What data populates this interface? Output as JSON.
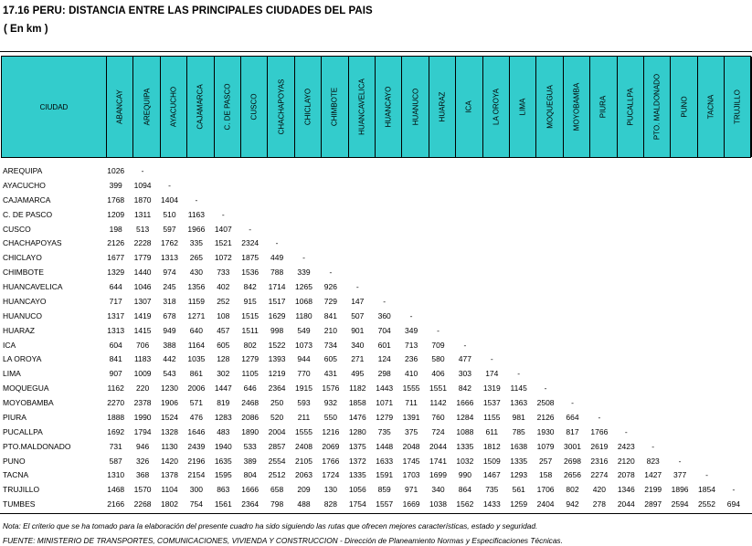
{
  "title": "17.16  PERU: DISTANCIA ENTRE LAS PRINCIPALES CIUDADES DEL PAIS",
  "subtitle": "( En km )",
  "header": {
    "city_label": "CIUDAD",
    "columns": [
      "ABANCAY",
      "AREQUIPA",
      "AYACUCHO",
      "CAJAMARCA",
      "C. DE PASCO",
      "CUSCO",
      "CHACHAPOYAS",
      "CHICLAYO",
      "CHIMBOTE",
      "HUANCAVELICA",
      "HUANCAYO",
      "HUANUCO",
      "HUARAZ",
      "ICA",
      "LA OROYA",
      "LIMA",
      "MOQUEGUA",
      "MOYOBAMBA",
      "PIURA",
      "PUCALLPA",
      "PTO. MALDONADO",
      "PUNO",
      "TACNA",
      "TRUJILLO"
    ]
  },
  "rows": [
    {
      "city": "AREQUIPA",
      "values": [
        "1026",
        "-"
      ]
    },
    {
      "city": "AYACUCHO",
      "values": [
        "399",
        "1094",
        "-"
      ]
    },
    {
      "city": "CAJAMARCA",
      "values": [
        "1768",
        "1870",
        "1404",
        "-"
      ]
    },
    {
      "city": "C. DE PASCO",
      "values": [
        "1209",
        "1311",
        "510",
        "1163",
        "-"
      ]
    },
    {
      "city": "CUSCO",
      "values": [
        "198",
        "513",
        "597",
        "1966",
        "1407",
        "-"
      ]
    },
    {
      "city": "CHACHAPOYAS",
      "values": [
        "2126",
        "2228",
        "1762",
        "335",
        "1521",
        "2324",
        "-"
      ]
    },
    {
      "city": "CHICLAYO",
      "values": [
        "1677",
        "1779",
        "1313",
        "265",
        "1072",
        "1875",
        "449",
        "-"
      ]
    },
    {
      "city": "CHIMBOTE",
      "values": [
        "1329",
        "1440",
        "974",
        "430",
        "733",
        "1536",
        "788",
        "339",
        "-"
      ]
    },
    {
      "city": "HUANCAVELICA",
      "values": [
        "644",
        "1046",
        "245",
        "1356",
        "402",
        "842",
        "1714",
        "1265",
        "926",
        "-"
      ]
    },
    {
      "city": "HUANCAYO",
      "values": [
        "717",
        "1307",
        "318",
        "1159",
        "252",
        "915",
        "1517",
        "1068",
        "729",
        "147",
        "-"
      ]
    },
    {
      "city": "HUANUCO",
      "values": [
        "1317",
        "1419",
        "678",
        "1271",
        "108",
        "1515",
        "1629",
        "1180",
        "841",
        "507",
        "360",
        "-"
      ]
    },
    {
      "city": "HUARAZ",
      "values": [
        "1313",
        "1415",
        "949",
        "640",
        "457",
        "1511",
        "998",
        "549",
        "210",
        "901",
        "704",
        "349",
        "-"
      ]
    },
    {
      "city": "ICA",
      "values": [
        "604",
        "706",
        "388",
        "1164",
        "605",
        "802",
        "1522",
        "1073",
        "734",
        "340",
        "601",
        "713",
        "709",
        "-"
      ]
    },
    {
      "city": "LA OROYA",
      "values": [
        "841",
        "1183",
        "442",
        "1035",
        "128",
        "1279",
        "1393",
        "944",
        "605",
        "271",
        "124",
        "236",
        "580",
        "477",
        "-"
      ]
    },
    {
      "city": "LIMA",
      "values": [
        "907",
        "1009",
        "543",
        "861",
        "302",
        "1105",
        "1219",
        "770",
        "431",
        "495",
        "298",
        "410",
        "406",
        "303",
        "174",
        "-"
      ]
    },
    {
      "city": "MOQUEGUA",
      "values": [
        "1162",
        "220",
        "1230",
        "2006",
        "1447",
        "646",
        "2364",
        "1915",
        "1576",
        "1182",
        "1443",
        "1555",
        "1551",
        "842",
        "1319",
        "1145",
        "-"
      ]
    },
    {
      "city": "MOYOBAMBA",
      "values": [
        "2270",
        "2378",
        "1906",
        "571",
        "819",
        "2468",
        "250",
        "593",
        "932",
        "1858",
        "1071",
        "711",
        "1142",
        "1666",
        "1537",
        "1363",
        "2508",
        "-"
      ]
    },
    {
      "city": "PIURA",
      "values": [
        "1888",
        "1990",
        "1524",
        "476",
        "1283",
        "2086",
        "520",
        "211",
        "550",
        "1476",
        "1279",
        "1391",
        "760",
        "1284",
        "1155",
        "981",
        "2126",
        "664",
        "-"
      ]
    },
    {
      "city": "PUCALLPA",
      "values": [
        "1692",
        "1794",
        "1328",
        "1646",
        "483",
        "1890",
        "2004",
        "1555",
        "1216",
        "1280",
        "735",
        "375",
        "724",
        "1088",
        "611",
        "785",
        "1930",
        "817",
        "1766",
        "-"
      ]
    },
    {
      "city": "PTO.MALDONADO",
      "values": [
        "731",
        "946",
        "1130",
        "2439",
        "1940",
        "533",
        "2857",
        "2408",
        "2069",
        "1375",
        "1448",
        "2048",
        "2044",
        "1335",
        "1812",
        "1638",
        "1079",
        "3001",
        "2619",
        "2423",
        "-"
      ]
    },
    {
      "city": "PUNO",
      "values": [
        "587",
        "326",
        "1420",
        "2196",
        "1635",
        "389",
        "2554",
        "2105",
        "1766",
        "1372",
        "1633",
        "1745",
        "1741",
        "1032",
        "1509",
        "1335",
        "257",
        "2698",
        "2316",
        "2120",
        "823",
        "-"
      ]
    },
    {
      "city": "TACNA",
      "values": [
        "1310",
        "368",
        "1378",
        "2154",
        "1595",
        "804",
        "2512",
        "2063",
        "1724",
        "1335",
        "1591",
        "1703",
        "1699",
        "990",
        "1467",
        "1293",
        "158",
        "2656",
        "2274",
        "2078",
        "1427",
        "377",
        "-"
      ]
    },
    {
      "city": "TRUJILLO",
      "values": [
        "1468",
        "1570",
        "1104",
        "300",
        "863",
        "1666",
        "658",
        "209",
        "130",
        "1056",
        "859",
        "971",
        "340",
        "864",
        "735",
        "561",
        "1706",
        "802",
        "420",
        "1346",
        "2199",
        "1896",
        "1854",
        "-"
      ]
    },
    {
      "city": "TUMBES",
      "values": [
        "2166",
        "2268",
        "1802",
        "754",
        "1561",
        "2364",
        "798",
        "488",
        "828",
        "1754",
        "1557",
        "1669",
        "1038",
        "1562",
        "1433",
        "1259",
        "2404",
        "942",
        "278",
        "2044",
        "2897",
        "2594",
        "2552",
        "694"
      ]
    }
  ],
  "note": "Nota: El criterio que se ha tomado para la elaboración del presente cuadro ha sido siguiendo las rutas que ofrecen mejores características, estado y seguridad.",
  "source": "FUENTE: MINISTERIO DE TRANSPORTES, COMUNICACIONES, VIVIENDA Y CONSTRUCCION - Dirección de Planeamiento Normas y Especificaciones Técnicas."
}
